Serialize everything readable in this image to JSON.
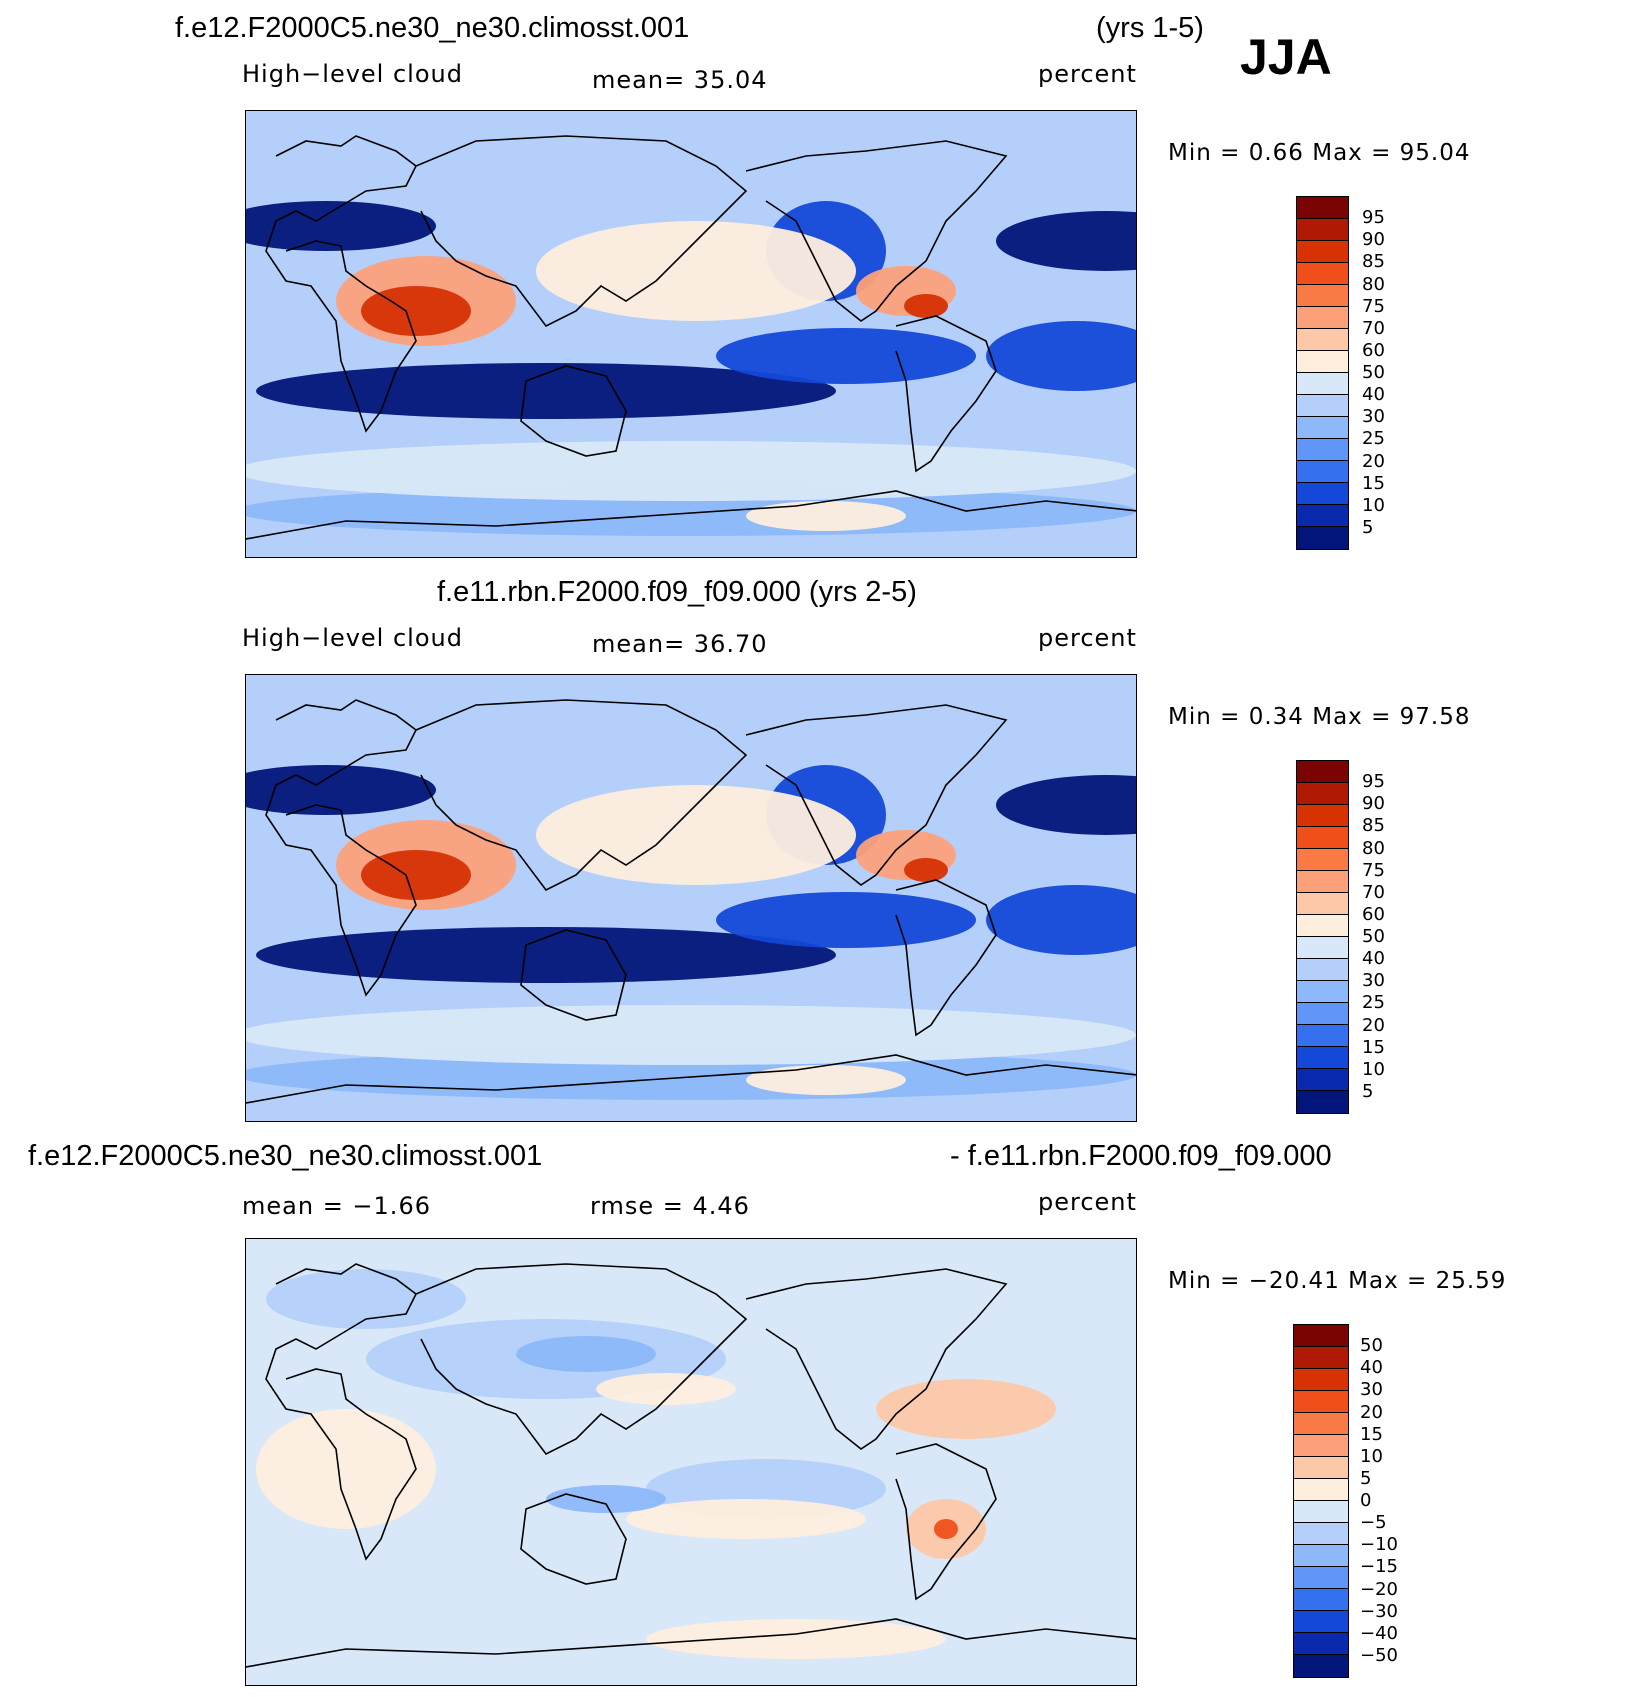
{
  "season": "JJA",
  "panel1": {
    "title": "f.e12.F2000C5.ne30_ne30.climosst.001",
    "years": "(yrs 1-5)",
    "variable": "High−level cloud",
    "mean": "mean=   35.04",
    "units": "percent",
    "minmax": "Min =    0.66  Max =   95.04"
  },
  "panel2": {
    "title": "f.e11.rbn.F2000.f09_f09.000 (yrs 2-5)",
    "variable": "High−level cloud",
    "mean": "mean=   36.70",
    "units": "percent",
    "minmax": "Min =    0.34  Max =   97.58"
  },
  "panel3": {
    "title_left": "f.e12.F2000C5.ne30_ne30.climosst.001",
    "title_right": "- f.e11.rbn.F2000.f09_f09.000",
    "mean": "mean =   −1.66",
    "rmse": "rmse =    4.46",
    "units": "percent",
    "minmax": "Min = −20.41  Max =   25.59"
  },
  "colorbar_abs": {
    "labels": [
      "95",
      "90",
      "85",
      "80",
      "75",
      "70",
      "60",
      "50",
      "40",
      "30",
      "25",
      "20",
      "15",
      "10",
      "5"
    ],
    "colors": [
      "#7a0403",
      "#b01a05",
      "#d63204",
      "#f04e1a",
      "#fa7a46",
      "#fca07a",
      "#fdc8a8",
      "#feeede",
      "#d8e8f8",
      "#b4d0fa",
      "#8db8fa",
      "#5f96f7",
      "#3571ee",
      "#1448d8",
      "#0a2aae",
      "#02157a"
    ]
  },
  "colorbar_diff": {
    "labels": [
      "50",
      "40",
      "30",
      "20",
      "15",
      "10",
      "5",
      "0",
      "−5",
      "−10",
      "−15",
      "−20",
      "−30",
      "−40",
      "−50"
    ],
    "colors": [
      "#7a0403",
      "#b01a05",
      "#d63204",
      "#f04e1a",
      "#fa7a46",
      "#fca07a",
      "#fdc8a8",
      "#feeede",
      "#d8e8f8",
      "#b4d0fa",
      "#8db8fa",
      "#5f96f7",
      "#3571ee",
      "#1448d8",
      "#0a2aae",
      "#02157a"
    ]
  }
}
